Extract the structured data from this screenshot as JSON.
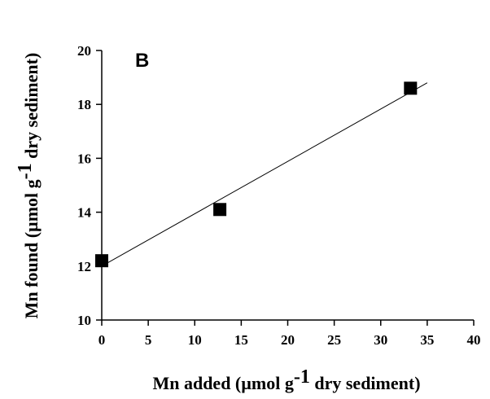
{
  "chart_data": {
    "type": "scatter",
    "panel_label": "B",
    "xlabel": {
      "prefix": "Mn added (µmol g",
      "sup": "-1",
      "suffix": " dry sediment)"
    },
    "ylabel": {
      "prefix": "Mn found (µmol g",
      "sup": "-1",
      "suffix": " dry sediment)"
    },
    "xlim": [
      0,
      40
    ],
    "ylim": [
      10,
      20
    ],
    "x_ticks": [
      0,
      5,
      10,
      15,
      20,
      25,
      30,
      35,
      40
    ],
    "y_ticks": [
      10,
      12,
      14,
      16,
      18,
      20
    ],
    "grid": false,
    "legend": "none",
    "series": [
      {
        "marker": "square",
        "x": [
          0,
          12.7,
          33.2
        ],
        "y": [
          12.2,
          14.1,
          18.6
        ]
      }
    ],
    "fit_line": {
      "x": [
        0,
        35
      ],
      "y": [
        12.0,
        18.8
      ]
    }
  }
}
